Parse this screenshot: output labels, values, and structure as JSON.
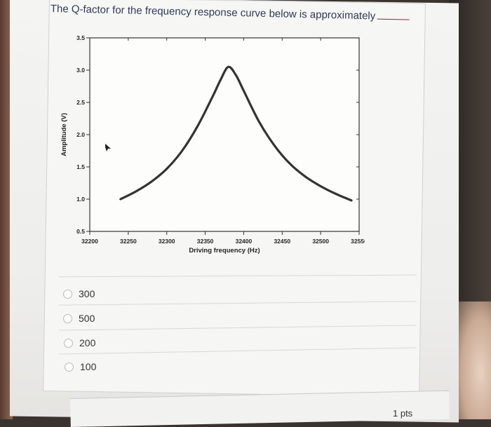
{
  "question": {
    "text": "The Q-factor for the frequency response curve below is approximately",
    "blank": "______.",
    "points": "1 pts"
  },
  "options": [
    {
      "label": "300",
      "selected": false
    },
    {
      "label": "500",
      "selected": false
    },
    {
      "label": "200",
      "selected": false
    },
    {
      "label": "100",
      "selected": false
    }
  ],
  "chart_data": {
    "type": "line",
    "title": "",
    "xlabel": "Driving frequency (Hz)",
    "ylabel": "Amplitude (V)",
    "xlim": [
      32200,
      32550
    ],
    "ylim": [
      0.5,
      3.5
    ],
    "x_ticks": [
      32200,
      32250,
      32300,
      32350,
      32400,
      32450,
      32500,
      32550
    ],
    "y_ticks": [
      0.5,
      1.0,
      1.5,
      2.0,
      2.5,
      3.0,
      3.5
    ],
    "y_tick_labels": [
      "0.5",
      "1.0",
      "1.5",
      "2.0",
      "2.5",
      "3.0",
      "3.5"
    ],
    "grid": false,
    "series": [
      {
        "color": "#333333",
        "x": [
          32240,
          32260,
          32280,
          32300,
          32320,
          32340,
          32360,
          32370,
          32380,
          32390,
          32400,
          32420,
          32440,
          32460,
          32480,
          32500,
          32520,
          32540
        ],
        "y": [
          1.0,
          1.12,
          1.27,
          1.47,
          1.75,
          2.13,
          2.6,
          2.85,
          3.05,
          2.92,
          2.68,
          2.2,
          1.83,
          1.55,
          1.35,
          1.2,
          1.08,
          0.98
        ]
      }
    ]
  }
}
